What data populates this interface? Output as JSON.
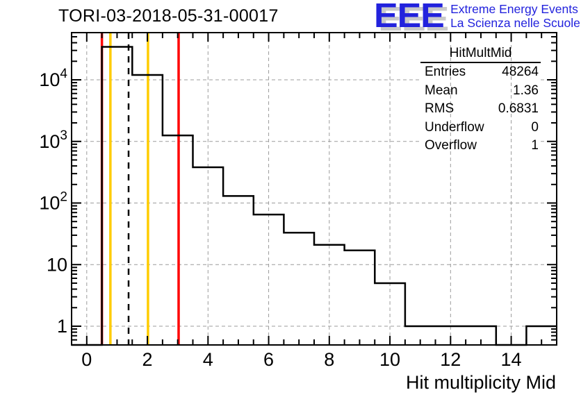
{
  "header": {
    "title": "TORI-03-2018-05-31-00017"
  },
  "logo": {
    "letters": "EEE",
    "line1": "Extreme Energy Events",
    "line2": "La Scienza nelle Scuole",
    "text_color": "#2222dd",
    "shadow_color": "#c9c9c9"
  },
  "stats_box": {
    "title": "HitMultMid",
    "rows": [
      {
        "label": "Entries",
        "value": "48264"
      },
      {
        "label": "Mean",
        "value": "1.36"
      },
      {
        "label": "RMS",
        "value": "0.6831"
      },
      {
        "label": "Underflow",
        "value": "0"
      },
      {
        "label": "Overflow",
        "value": "1"
      }
    ]
  },
  "chart_data": {
    "type": "histogram-step",
    "name": "HitMultMid",
    "title": "TORI-03-2018-05-31-00017",
    "xlabel": "Hit multiplicity Mid",
    "ylabel": "",
    "x_range": [
      -0.5,
      15.5
    ],
    "y_scale": "log",
    "y_range": [
      0.5,
      58000
    ],
    "grid": true,
    "bin_edges": [
      -0.5,
      0.5,
      1.5,
      2.5,
      3.5,
      4.5,
      5.5,
      6.5,
      7.5,
      8.5,
      9.5,
      10.5,
      11.5,
      12.5,
      13.5,
      14.5,
      15.5
    ],
    "bin_centers": [
      0,
      1,
      2,
      3,
      4,
      5,
      6,
      7,
      8,
      9,
      10,
      11,
      12,
      13,
      14,
      15
    ],
    "counts": [
      0,
      34300,
      12000,
      1250,
      380,
      130,
      65,
      33,
      21,
      17,
      5,
      1,
      1,
      1,
      0,
      1
    ],
    "entries": 48264,
    "mean": 1.36,
    "rms": 0.6831,
    "underflow": 0,
    "overflow": 1,
    "x_major_ticks": [
      0,
      2,
      4,
      6,
      8,
      10,
      12,
      14
    ],
    "x_tick_labels": [
      "0",
      "2",
      "4",
      "6",
      "8",
      "10",
      "12",
      "14"
    ],
    "x_minor_tick_step": 0.5,
    "y_major_ticks": [
      1,
      10,
      100,
      1000,
      10000
    ],
    "y_tick_labels": [
      {
        "base": "1"
      },
      {
        "base": "10"
      },
      {
        "base": "10",
        "exp": "2"
      },
      {
        "base": "10",
        "exp": "3"
      },
      {
        "base": "10",
        "exp": "4"
      }
    ],
    "marker_lines": [
      {
        "name": "red-line-low",
        "x": 0.5,
        "color": "#ff0000",
        "style": "solid"
      },
      {
        "name": "gold-line-low",
        "x": 0.78,
        "color": "#ffcc00",
        "style": "solid"
      },
      {
        "name": "mean-dashed-line",
        "x": 1.38,
        "color": "#000000",
        "style": "dashed"
      },
      {
        "name": "gold-line-high",
        "x": 2.02,
        "color": "#ffcc00",
        "style": "solid"
      },
      {
        "name": "red-line-high",
        "x": 3.03,
        "color": "#ff0000",
        "style": "solid"
      }
    ],
    "colors": {
      "line": "#000000",
      "grid": "#9b9b9b",
      "frame": "#000000"
    },
    "legend_position": "none"
  }
}
